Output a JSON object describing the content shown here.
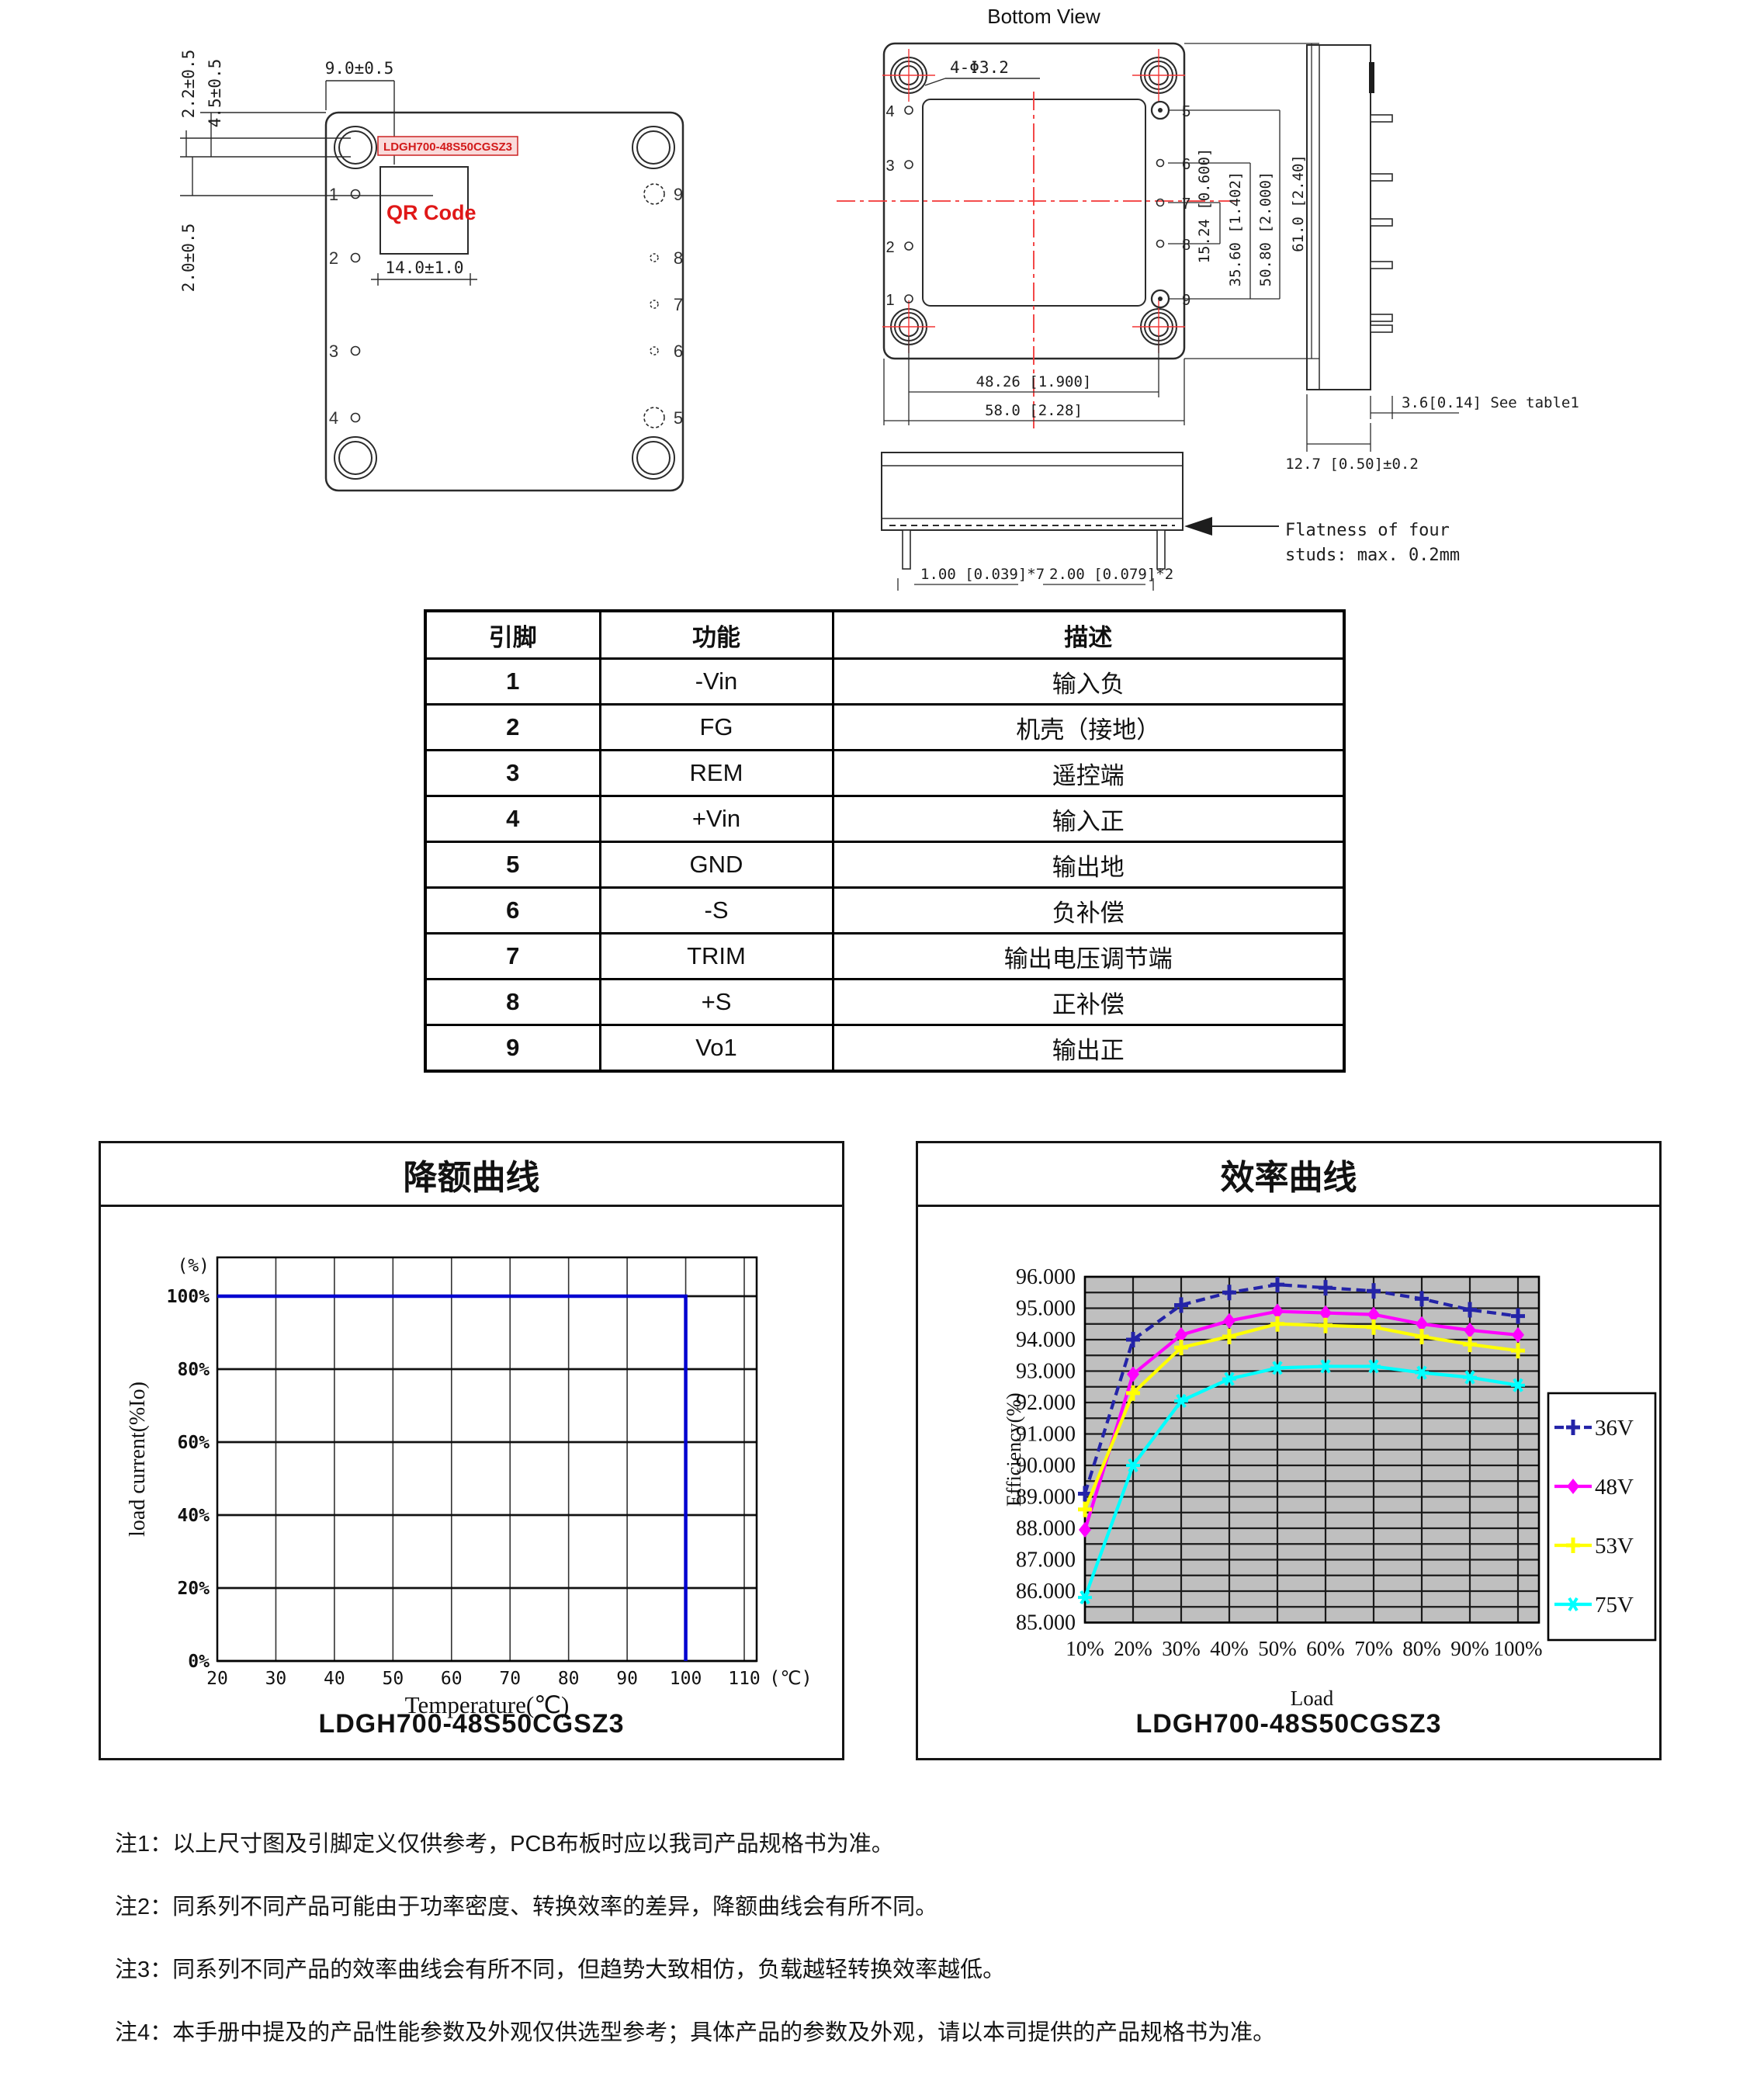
{
  "drawings": {
    "top_view": {
      "part_label": "LDGH700-48S50CGSZ3",
      "qr_label": "QR Code",
      "dim_9": "9.0±0.5",
      "dim_22": "2.2±0.5",
      "dim_45": "4.5±0.5",
      "dim_20": "2.0±0.5",
      "dim_14": "14.0±1.0",
      "pins_left": [
        "1",
        "2",
        "3",
        "4"
      ],
      "pins_right": [
        "9",
        "8",
        "7",
        "6",
        "5"
      ]
    },
    "bottom_view": {
      "title": "Bottom View",
      "hole_label": "4-Φ3.2",
      "pins_left": [
        "4",
        "3",
        "2",
        "1"
      ],
      "pins_right": [
        "5",
        "6",
        "7",
        "8",
        "9"
      ],
      "dim_1524": "15.24 [0.600]",
      "dim_3560": "35.60 [1.402]",
      "dim_5080": "50.80 [2.000]",
      "dim_610": "61.0 [2.40]",
      "dim_4826": "48.26 [1.900]",
      "dim_580": "58.0 [2.28]"
    },
    "side_view": {
      "dim_36": "3.6[0.14] See table1",
      "dim_127": "12.7 [0.50]±0.2"
    },
    "front_view": {
      "dim_100": "1.00 [0.039]*7",
      "dim_200": "2.00 [0.079]*2",
      "flatness_1": "Flatness of four",
      "flatness_2": "studs: max. 0.2mm"
    }
  },
  "pin_table": {
    "headers": [
      "引脚",
      "功能",
      "描述"
    ],
    "rows": [
      [
        "1",
        "-Vin",
        "输入负"
      ],
      [
        "2",
        "FG",
        "机壳（接地）"
      ],
      [
        "3",
        "REM",
        "遥控端"
      ],
      [
        "4",
        "+Vin",
        "输入正"
      ],
      [
        "5",
        "GND",
        "输出地"
      ],
      [
        "6",
        "-S",
        "负补偿"
      ],
      [
        "7",
        "TRIM",
        "输出电压调节端"
      ],
      [
        "8",
        "+S",
        "正补偿"
      ],
      [
        "9",
        "Vo1",
        "输出正"
      ]
    ]
  },
  "chart_data": [
    {
      "type": "line",
      "title": "降额曲线",
      "caption": "LDGH700-48S50CGSZ3",
      "xlabel": "Temperature(℃)",
      "ylabel": "load current(%Io)",
      "y_axis_unit": "(%)",
      "x_ticks": [
        20,
        30,
        40,
        50,
        60,
        70,
        80,
        90,
        100,
        110
      ],
      "x_suffix": "(℃)",
      "y_ticks": [
        0,
        20,
        40,
        60,
        80,
        100
      ],
      "xlim": [
        20,
        112
      ],
      "ylim": [
        0,
        110
      ],
      "grid": true,
      "legend_position": "none",
      "line_color": "#0101d0",
      "points": [
        [
          20,
          100
        ],
        [
          100,
          100
        ],
        [
          100,
          0
        ]
      ]
    },
    {
      "type": "line",
      "title": "效率曲线",
      "caption": "LDGH700-48S50CGSZ3",
      "xlabel": "Load",
      "ylabel": "Efficiency(%)",
      "categories": [
        "10%",
        "20%",
        "30%",
        "40%",
        "50%",
        "60%",
        "70%",
        "80%",
        "90%",
        "100%"
      ],
      "ylim": [
        85,
        96
      ],
      "ytick_step": 1,
      "ygrid_step": 0.5,
      "plot_bg": "#bfbfbf",
      "grid": true,
      "legend_position": "right",
      "series": [
        {
          "name": "36V",
          "color": "#2424a8",
          "dash": "12 7",
          "marker": "plus",
          "values": [
            89.1,
            94.0,
            95.1,
            95.5,
            95.75,
            95.65,
            95.55,
            95.3,
            94.95,
            94.75
          ]
        },
        {
          "name": "48V",
          "color": "#ff00ff",
          "dash": null,
          "marker": "diamond",
          "values": [
            87.95,
            92.9,
            94.15,
            94.6,
            94.9,
            94.85,
            94.8,
            94.5,
            94.3,
            94.15
          ]
        },
        {
          "name": "53V",
          "color": "#ffff00",
          "dash": null,
          "marker": "plus",
          "values": [
            88.6,
            92.3,
            93.75,
            94.1,
            94.5,
            94.45,
            94.4,
            94.1,
            93.85,
            93.65
          ]
        },
        {
          "name": "75V",
          "color": "#00ffff",
          "dash": null,
          "marker": "star",
          "values": [
            85.8,
            90.0,
            92.05,
            92.75,
            93.1,
            93.15,
            93.15,
            92.95,
            92.8,
            92.55
          ]
        }
      ]
    }
  ],
  "notes": [
    "注1：以上尺寸图及引脚定义仅供参考，PCB布板时应以我司产品规格书为准。",
    "注2：同系列不同产品可能由于功率密度、转换效率的差异，降额曲线会有所不同。",
    "注3：同系列不同产品的效率曲线会有所不同，但趋势大致相仿，负载越轻转换效率越低。",
    "注4：本手册中提及的产品性能参数及外观仅供选型参考；具体产品的参数及外观，请以本司提供的产品规格书为准。"
  ]
}
